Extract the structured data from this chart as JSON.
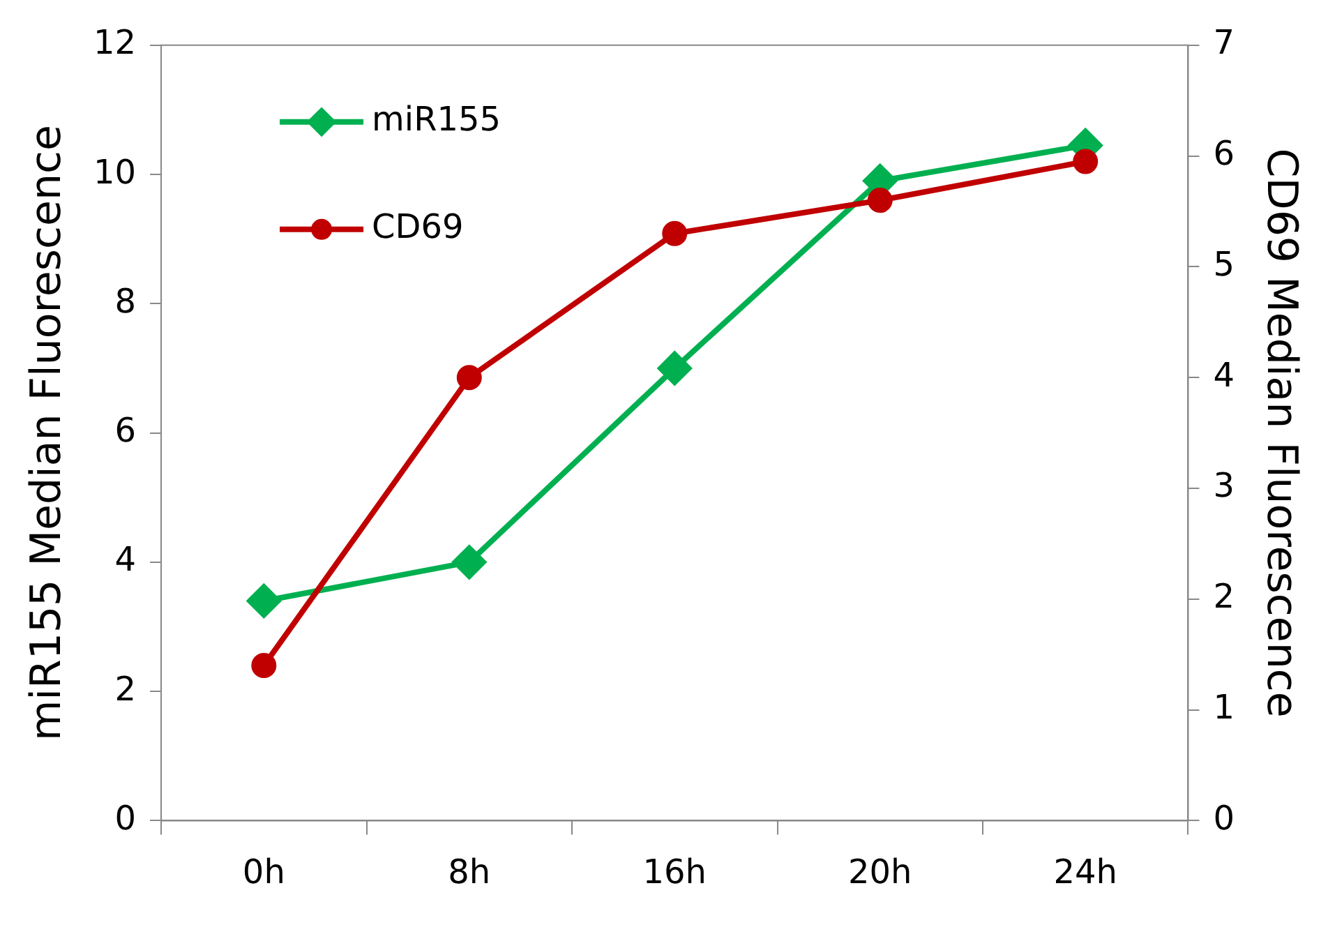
{
  "chart_data": {
    "type": "line",
    "ylabel": "miR155 Median Fluorescence",
    "y2label": "CD69 Median Fluorescence",
    "categories": [
      "0h",
      "8h",
      "16h",
      "20h",
      "24h"
    ],
    "series": [
      {
        "name": "miR155",
        "color": "#00b050",
        "marker": "diamond",
        "values": [
          3.4,
          4.0,
          7.0,
          9.9,
          10.45
        ]
      },
      {
        "name": "CD69",
        "color": "#c00000",
        "marker": "circle",
        "axis": "y2",
        "values": [
          1.4,
          4.0,
          5.3,
          5.6,
          5.95
        ]
      }
    ],
    "ylim": [
      0,
      12
    ],
    "yticks": [
      0,
      2,
      4,
      6,
      8,
      10,
      12
    ],
    "y2lim": [
      0,
      7
    ],
    "y2ticks": [
      0,
      1,
      2,
      3,
      4,
      5,
      6,
      7
    ],
    "grid": false,
    "legend": "top left"
  }
}
